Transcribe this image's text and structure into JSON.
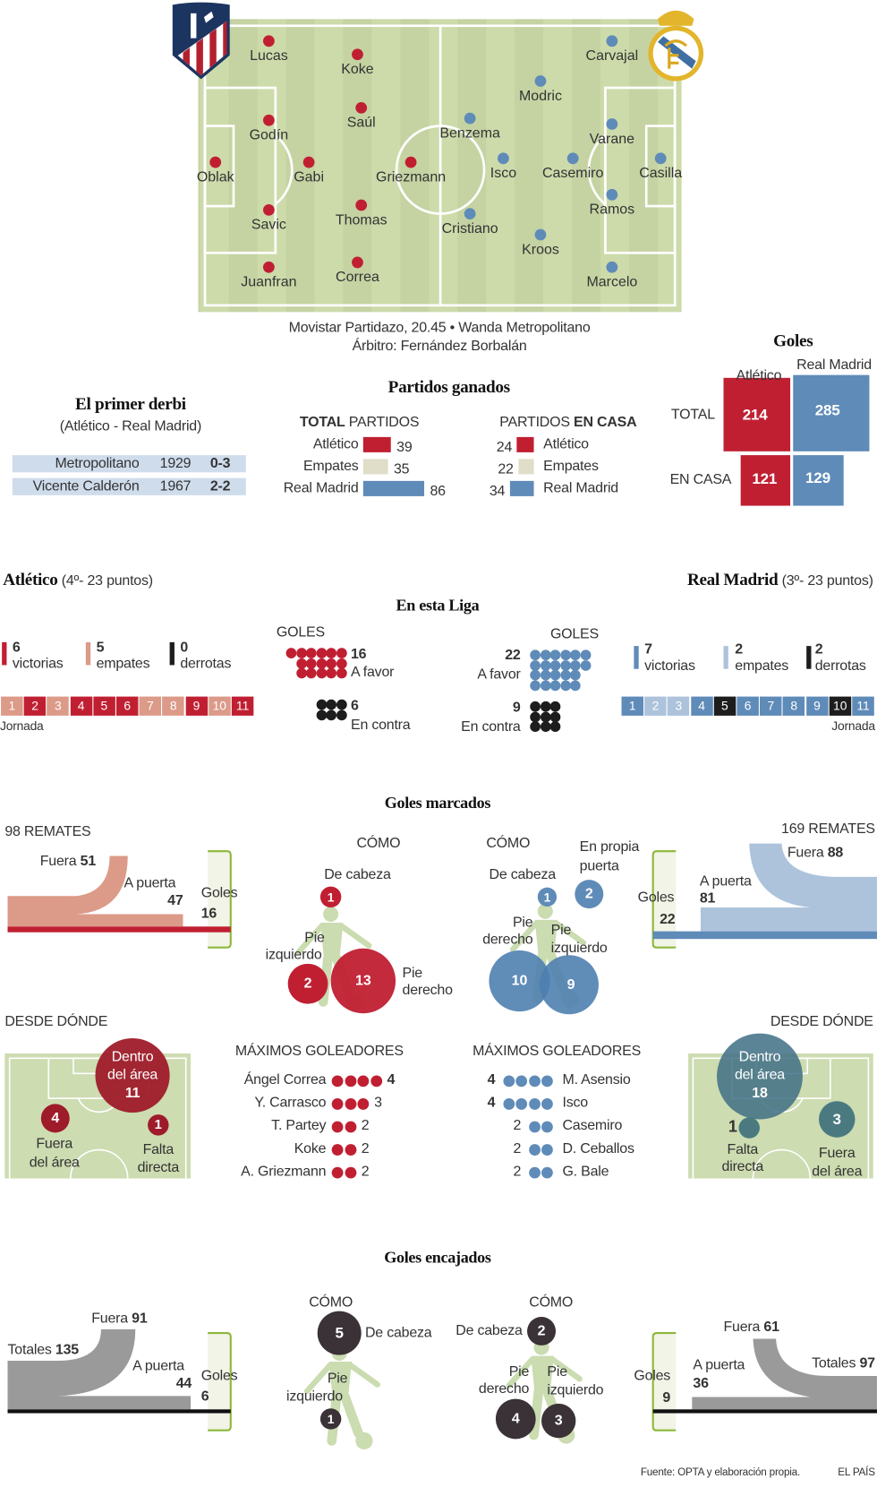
{
  "match": {
    "broadcast": "Movistar Partidazo, 20.45 • Wanda Metropolitano",
    "referee": "Árbitro: Fernández Borbalán"
  },
  "lineups": {
    "atletico": [
      "Lucas",
      "Koke",
      "Saúl",
      "Godín",
      "Oblak",
      "Gabi",
      "Griezmann",
      "Savic",
      "Thomas",
      "Juanfran",
      "Correa"
    ],
    "real_madrid": [
      "Carvajal",
      "Modric",
      "Benzema",
      "Varane",
      "Isco",
      "Casemiro",
      "Casilla",
      "Ramos",
      "Cristiano",
      "Kroos",
      "Marcelo"
    ]
  },
  "goles_totales": {
    "title": "Goles",
    "atletico_label": "Atlético",
    "rm_label": "Real Madrid",
    "total_label": "TOTAL",
    "casa_label": "EN CASA",
    "atletico_total": 214,
    "rm_total": 285,
    "atletico_casa": 121,
    "rm_casa": 129
  },
  "primer_derbi": {
    "title": "El primer derbi",
    "subtitle": "(Atlético - Real Madrid)",
    "rows": [
      {
        "stadium": "Metropolitano",
        "year": "1929",
        "score": "0-3"
      },
      {
        "stadium": "Vicente Calderón",
        "year": "1967",
        "score": "2-2"
      }
    ]
  },
  "partidos_ganados": {
    "title": "Partidos ganados",
    "total_bold": "TOTAL",
    "total_rest": " PARTIDOS",
    "casa_rest": "PARTIDOS ",
    "casa_bold": "EN CASA",
    "rows": [
      {
        "label": "Atlético",
        "total": 39,
        "casa": 24
      },
      {
        "label": "Empates",
        "total": 35,
        "casa": 22
      },
      {
        "label": "Real Madrid",
        "total": 86,
        "casa": 34
      }
    ]
  },
  "teams": {
    "atletico": {
      "name": "Atlético",
      "standing": "(4º- 23 puntos)"
    },
    "rm": {
      "name": "Real Madrid",
      "standing": "(3º- 23 puntos)"
    }
  },
  "liga": {
    "title": "En esta Liga",
    "atletico": {
      "wins": "6",
      "wins_label": "victorias",
      "draws": "5",
      "draws_label": "empates",
      "losses": "0",
      "losses_label": "derrotas",
      "jornadas": [
        "D",
        "W",
        "D",
        "W",
        "W",
        "W",
        "D",
        "D",
        "W",
        "D",
        "W"
      ],
      "jornada_label": "Jornada",
      "goles_label": "GOLES",
      "favor": 16,
      "favor_label": "A favor",
      "contra": 6,
      "contra_label": "En contra"
    },
    "rm": {
      "wins": "7",
      "wins_label": "victorias",
      "draws": "2",
      "draws_label": "empates",
      "losses": "2",
      "losses_label": "derrotas",
      "jornadas": [
        "W",
        "D",
        "D",
        "W",
        "L",
        "W",
        "W",
        "W",
        "W",
        "L",
        "W"
      ],
      "jornada_label": "Jornada",
      "goles_label": "GOLES",
      "favor": 22,
      "favor_label": "A favor",
      "contra": 9,
      "contra_label": "En contra"
    }
  },
  "goles_marcados": {
    "title": "Goles marcados",
    "como_label": "CÓMO",
    "desde_label": "DESDE DÓNDE",
    "goleadores_label": "MÁXIMOS GOLEADORES",
    "atletico": {
      "remates": "98 REMATES",
      "fuera_label": "Fuera",
      "fuera": "51",
      "apuerta_label": "A puerta",
      "apuerta": "47",
      "goles_label": "Goles",
      "goles": "16",
      "cabeza_label": "De cabeza",
      "cabeza": "1",
      "izq_label1": "Pie",
      "izq_label2": "izquierdo",
      "izq": "2",
      "der_label1": "Pie",
      "der_label2": "derecho",
      "der": "13",
      "dentro_label1": "Dentro",
      "dentro_label2": "del área",
      "dentro": "11",
      "fuera_area_label1": "Fuera",
      "fuera_area_label2": "del área",
      "fuera_area": "4",
      "falta_label1": "Falta",
      "falta_label2": "directa",
      "falta": "1",
      "scorers": [
        {
          "name": "Ángel Correa",
          "goals": 4
        },
        {
          "name": "Y. Carrasco",
          "goals": 3
        },
        {
          "name": "T. Partey",
          "goals": 2
        },
        {
          "name": "Koke",
          "goals": 2
        },
        {
          "name": "A. Griezmann",
          "goals": 2
        }
      ]
    },
    "rm": {
      "remates": "169 REMATES",
      "fuera_label": "Fuera",
      "fuera": "88",
      "apuerta_label": "A puerta",
      "apuerta": "81",
      "goles_label": "Goles",
      "goles": "22",
      "cabeza_label": "De cabeza",
      "cabeza": "1",
      "propia_label1": "En propia",
      "propia_label2": "puerta",
      "propia": "2",
      "der_label1": "Pie",
      "der_label2": "derecho",
      "der": "10",
      "izq_label1": "Pie",
      "izq_label2": "izquierdo",
      "izq": "9",
      "dentro_label1": "Dentro",
      "dentro_label2": "del área",
      "dentro": "18",
      "falta_label1": "Falta",
      "falta_label2": "directa",
      "falta": "1",
      "fuera_area_label1": "Fuera",
      "fuera_area_label2": "del área",
      "fuera_area": "3",
      "scorers": [
        {
          "name": "M. Asensio",
          "goals": 4
        },
        {
          "name": "Isco",
          "goals": 4
        },
        {
          "name": "Casemiro",
          "goals": 2
        },
        {
          "name": "D. Ceballos",
          "goals": 2
        },
        {
          "name": "G. Bale",
          "goals": 2
        }
      ]
    }
  },
  "goles_encajados": {
    "title": "Goles encajados",
    "como_label": "CÓMO",
    "atletico": {
      "fuera_label": "Fuera",
      "fuera": "91",
      "totales_label": "Totales",
      "totales": "135",
      "apuerta_label": "A puerta",
      "apuerta": "44",
      "goles_label": "Goles",
      "goles": "6",
      "cabeza_label": "De cabeza",
      "cabeza": "5",
      "izq_label1": "Pie",
      "izq_label2": "izquierdo",
      "izq": "1"
    },
    "rm": {
      "fuera_label": "Fuera",
      "fuera": "61",
      "totales_label": "Totales",
      "totales": "97",
      "apuerta_label": "A puerta",
      "apuerta": "36",
      "goles_label": "Goles",
      "goles": "9",
      "cabeza_label": "De cabeza",
      "cabeza": "2",
      "der_label1": "Pie",
      "der_label2": "derecho",
      "der": "4",
      "izq_label1": "Pie",
      "izq_label2": "izquierdo",
      "izq": "3"
    }
  },
  "colors": {
    "atletico": "#c01f32",
    "atletico_light": "#dc9a88",
    "rm": "#5f8bb8",
    "rm_light": "#adc3dc",
    "loss": "#1d1d1d",
    "draw_beige": "#e0ddc8",
    "grey_flow": "#9a9a9a"
  },
  "footer": {
    "source": "Fuente: OPTA y elaboración propia.",
    "brand": "EL PAÍS"
  }
}
